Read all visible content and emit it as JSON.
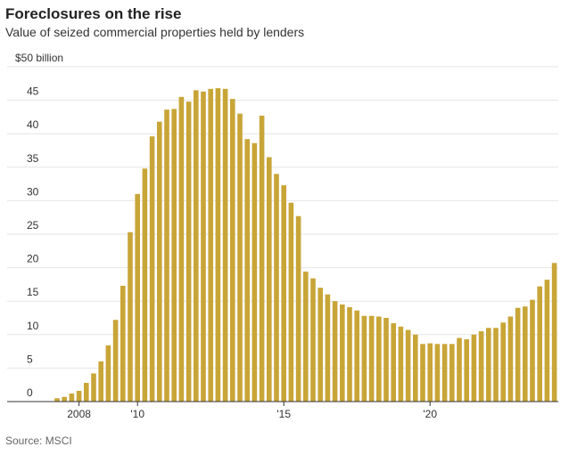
{
  "chart_data": {
    "type": "bar",
    "title": "Foreclosures on the rise",
    "subtitle": "Value of seized commercial properties held by lenders",
    "source": "Source: MSCI",
    "categories": [
      null,
      null,
      null,
      "2008",
      null,
      null,
      null,
      null,
      null,
      null,
      null,
      "'10",
      null,
      null,
      null,
      null,
      null,
      null,
      null,
      null,
      null,
      null,
      null,
      null,
      null,
      null,
      null,
      null,
      null,
      null,
      null,
      "'15",
      null,
      null,
      null,
      null,
      null,
      null,
      null,
      null,
      null,
      null,
      null,
      null,
      null,
      null,
      null,
      null,
      null,
      null,
      null,
      "'20",
      null,
      null,
      null,
      null,
      null,
      null,
      null,
      null,
      null,
      null,
      null,
      null,
      null,
      null,
      null,
      null,
      null
    ],
    "values": [
      0.5,
      0.7,
      1.2,
      1.6,
      2.8,
      4.2,
      6.0,
      8.4,
      12.2,
      17.3,
      25.3,
      31.0,
      34.8,
      39.6,
      41.8,
      43.6,
      43.7,
      45.5,
      44.8,
      46.5,
      46.3,
      46.7,
      46.8,
      46.7,
      45.2,
      43.0,
      39.2,
      38.6,
      42.7,
      36.5,
      34.0,
      32.3,
      29.7,
      27.7,
      19.4,
      18.4,
      17.0,
      16.0,
      15.0,
      14.5,
      14.1,
      13.6,
      12.8,
      12.8,
      12.7,
      12.5,
      11.7,
      11.2,
      10.7,
      10.0,
      8.6,
      8.7,
      8.6,
      8.6,
      8.6,
      9.5,
      9.3,
      10.0,
      10.5,
      11.0,
      11.0,
      11.8,
      12.7,
      14.0,
      14.2,
      15.2,
      17.2,
      18.2,
      20.7
    ],
    "color": "#c8a537",
    "ylim": [
      0,
      50
    ],
    "yticks": [
      0,
      5,
      10,
      15,
      20,
      25,
      30,
      35,
      40,
      45,
      {
        "value": 50,
        "label": "$50 billion"
      }
    ],
    "grid": true
  }
}
